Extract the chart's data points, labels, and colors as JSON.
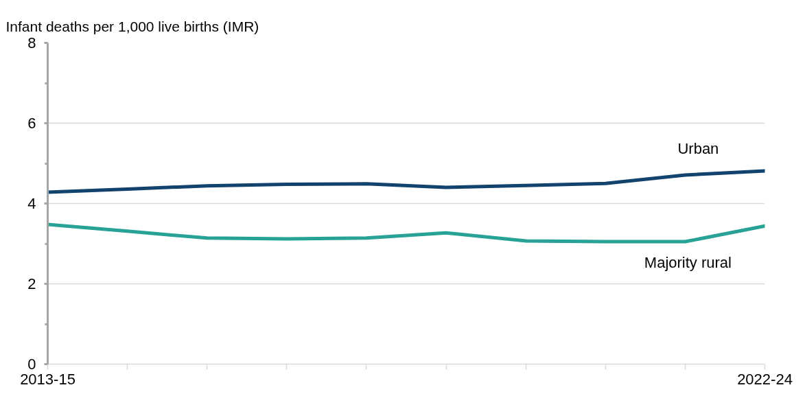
{
  "chart_data": {
    "type": "line",
    "ylabel": "Infant deaths per 1,000 live births (IMR)",
    "categories": [
      "2013-15",
      null,
      null,
      null,
      null,
      null,
      null,
      null,
      null,
      "2022-24"
    ],
    "series": [
      {
        "name": "Urban",
        "color": "#12436d",
        "values": [
          4.28,
          4.36,
          4.44,
          4.48,
          4.49,
          4.4,
          4.45,
          4.5,
          4.71,
          4.81
        ]
      },
      {
        "name": "Majority rural",
        "color": "#28a197",
        "values": [
          3.48,
          3.31,
          3.14,
          3.12,
          3.14,
          3.27,
          3.07,
          3.05,
          3.05,
          3.44
        ]
      }
    ],
    "ylim": [
      0,
      8
    ],
    "yticks": [
      0,
      {
        "value": 1,
        "label": null
      },
      2,
      {
        "value": 3,
        "label": null
      },
      4,
      {
        "value": 5,
        "label": null
      },
      6,
      {
        "value": 7,
        "label": null
      },
      8
    ],
    "grid": "y",
    "line_style": "solid"
  }
}
